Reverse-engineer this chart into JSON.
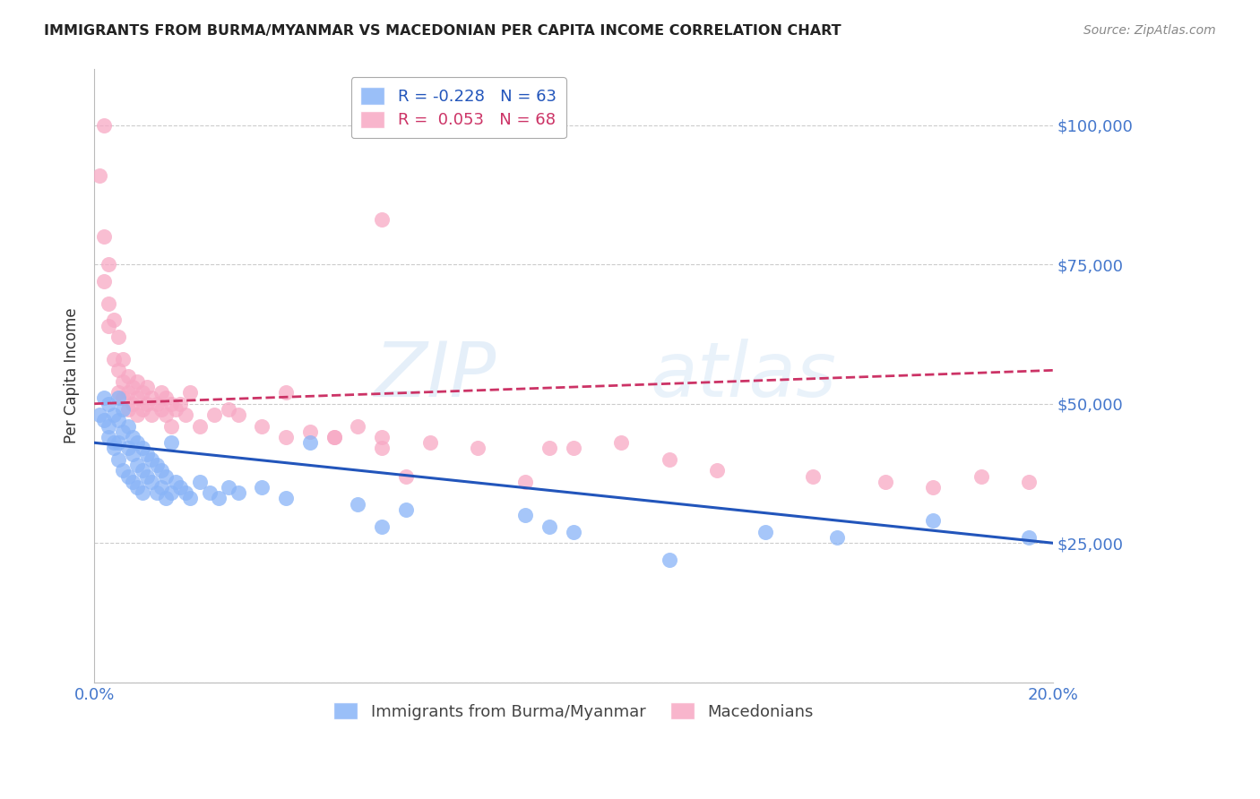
{
  "title": "IMMIGRANTS FROM BURMA/MYANMAR VS MACEDONIAN PER CAPITA INCOME CORRELATION CHART",
  "source": "Source: ZipAtlas.com",
  "ylabel": "Per Capita Income",
  "x_min": 0.0,
  "x_max": 0.2,
  "y_min": 0,
  "y_max": 110000,
  "yticks": [
    0,
    25000,
    50000,
    75000,
    100000
  ],
  "ytick_labels": [
    "",
    "$25,000",
    "$50,000",
    "$75,000",
    "$100,000"
  ],
  "xticks": [
    0.0,
    0.05,
    0.1,
    0.15,
    0.2
  ],
  "xtick_labels": [
    "0.0%",
    "",
    "",
    "",
    "20.0%"
  ],
  "blue_R": -0.228,
  "blue_N": 63,
  "pink_R": 0.053,
  "pink_N": 68,
  "blue_color": "#89b4f7",
  "pink_color": "#f7a8c4",
  "blue_line_color": "#2255bb",
  "pink_line_color": "#cc3366",
  "axis_color": "#4477cc",
  "background_color": "#ffffff",
  "grid_color": "#cccccc",
  "blue_x": [
    0.001,
    0.002,
    0.002,
    0.003,
    0.003,
    0.003,
    0.004,
    0.004,
    0.004,
    0.005,
    0.005,
    0.005,
    0.005,
    0.006,
    0.006,
    0.006,
    0.007,
    0.007,
    0.007,
    0.008,
    0.008,
    0.008,
    0.009,
    0.009,
    0.009,
    0.01,
    0.01,
    0.01,
    0.011,
    0.011,
    0.012,
    0.012,
    0.013,
    0.013,
    0.014,
    0.014,
    0.015,
    0.015,
    0.016,
    0.016,
    0.017,
    0.018,
    0.019,
    0.02,
    0.022,
    0.024,
    0.026,
    0.028,
    0.03,
    0.035,
    0.04,
    0.045,
    0.055,
    0.06,
    0.065,
    0.09,
    0.095,
    0.1,
    0.12,
    0.14,
    0.155,
    0.175,
    0.195
  ],
  "blue_y": [
    48000,
    51000,
    47000,
    50000,
    46000,
    44000,
    48000,
    43000,
    42000,
    51000,
    47000,
    43000,
    40000,
    49000,
    45000,
    38000,
    46000,
    42000,
    37000,
    44000,
    41000,
    36000,
    43000,
    39000,
    35000,
    42000,
    38000,
    34000,
    41000,
    37000,
    40000,
    36000,
    39000,
    34000,
    38000,
    35000,
    37000,
    33000,
    43000,
    34000,
    36000,
    35000,
    34000,
    33000,
    36000,
    34000,
    33000,
    35000,
    34000,
    35000,
    33000,
    43000,
    32000,
    28000,
    31000,
    30000,
    28000,
    27000,
    22000,
    27000,
    26000,
    29000,
    26000
  ],
  "pink_x": [
    0.001,
    0.002,
    0.002,
    0.003,
    0.003,
    0.003,
    0.004,
    0.004,
    0.005,
    0.005,
    0.005,
    0.006,
    0.006,
    0.006,
    0.007,
    0.007,
    0.007,
    0.008,
    0.008,
    0.009,
    0.009,
    0.009,
    0.01,
    0.01,
    0.011,
    0.011,
    0.012,
    0.012,
    0.013,
    0.014,
    0.014,
    0.015,
    0.015,
    0.016,
    0.016,
    0.017,
    0.018,
    0.019,
    0.02,
    0.022,
    0.025,
    0.028,
    0.03,
    0.035,
    0.04,
    0.045,
    0.05,
    0.055,
    0.06,
    0.06,
    0.065,
    0.07,
    0.08,
    0.09,
    0.095,
    0.1,
    0.11,
    0.12,
    0.13,
    0.15,
    0.165,
    0.175,
    0.185,
    0.195,
    0.04,
    0.05,
    0.06,
    0.002
  ],
  "pink_y": [
    91000,
    80000,
    72000,
    75000,
    68000,
    64000,
    65000,
    58000,
    62000,
    56000,
    52000,
    58000,
    54000,
    51000,
    55000,
    52000,
    49000,
    53000,
    50000,
    54000,
    51000,
    48000,
    52000,
    49000,
    53000,
    50000,
    51000,
    48000,
    50000,
    52000,
    49000,
    51000,
    48000,
    50000,
    46000,
    49000,
    50000,
    48000,
    52000,
    46000,
    48000,
    49000,
    48000,
    46000,
    44000,
    45000,
    44000,
    46000,
    44000,
    42000,
    37000,
    43000,
    42000,
    36000,
    42000,
    42000,
    43000,
    40000,
    38000,
    37000,
    36000,
    35000,
    37000,
    36000,
    52000,
    44000,
    83000,
    100000
  ]
}
